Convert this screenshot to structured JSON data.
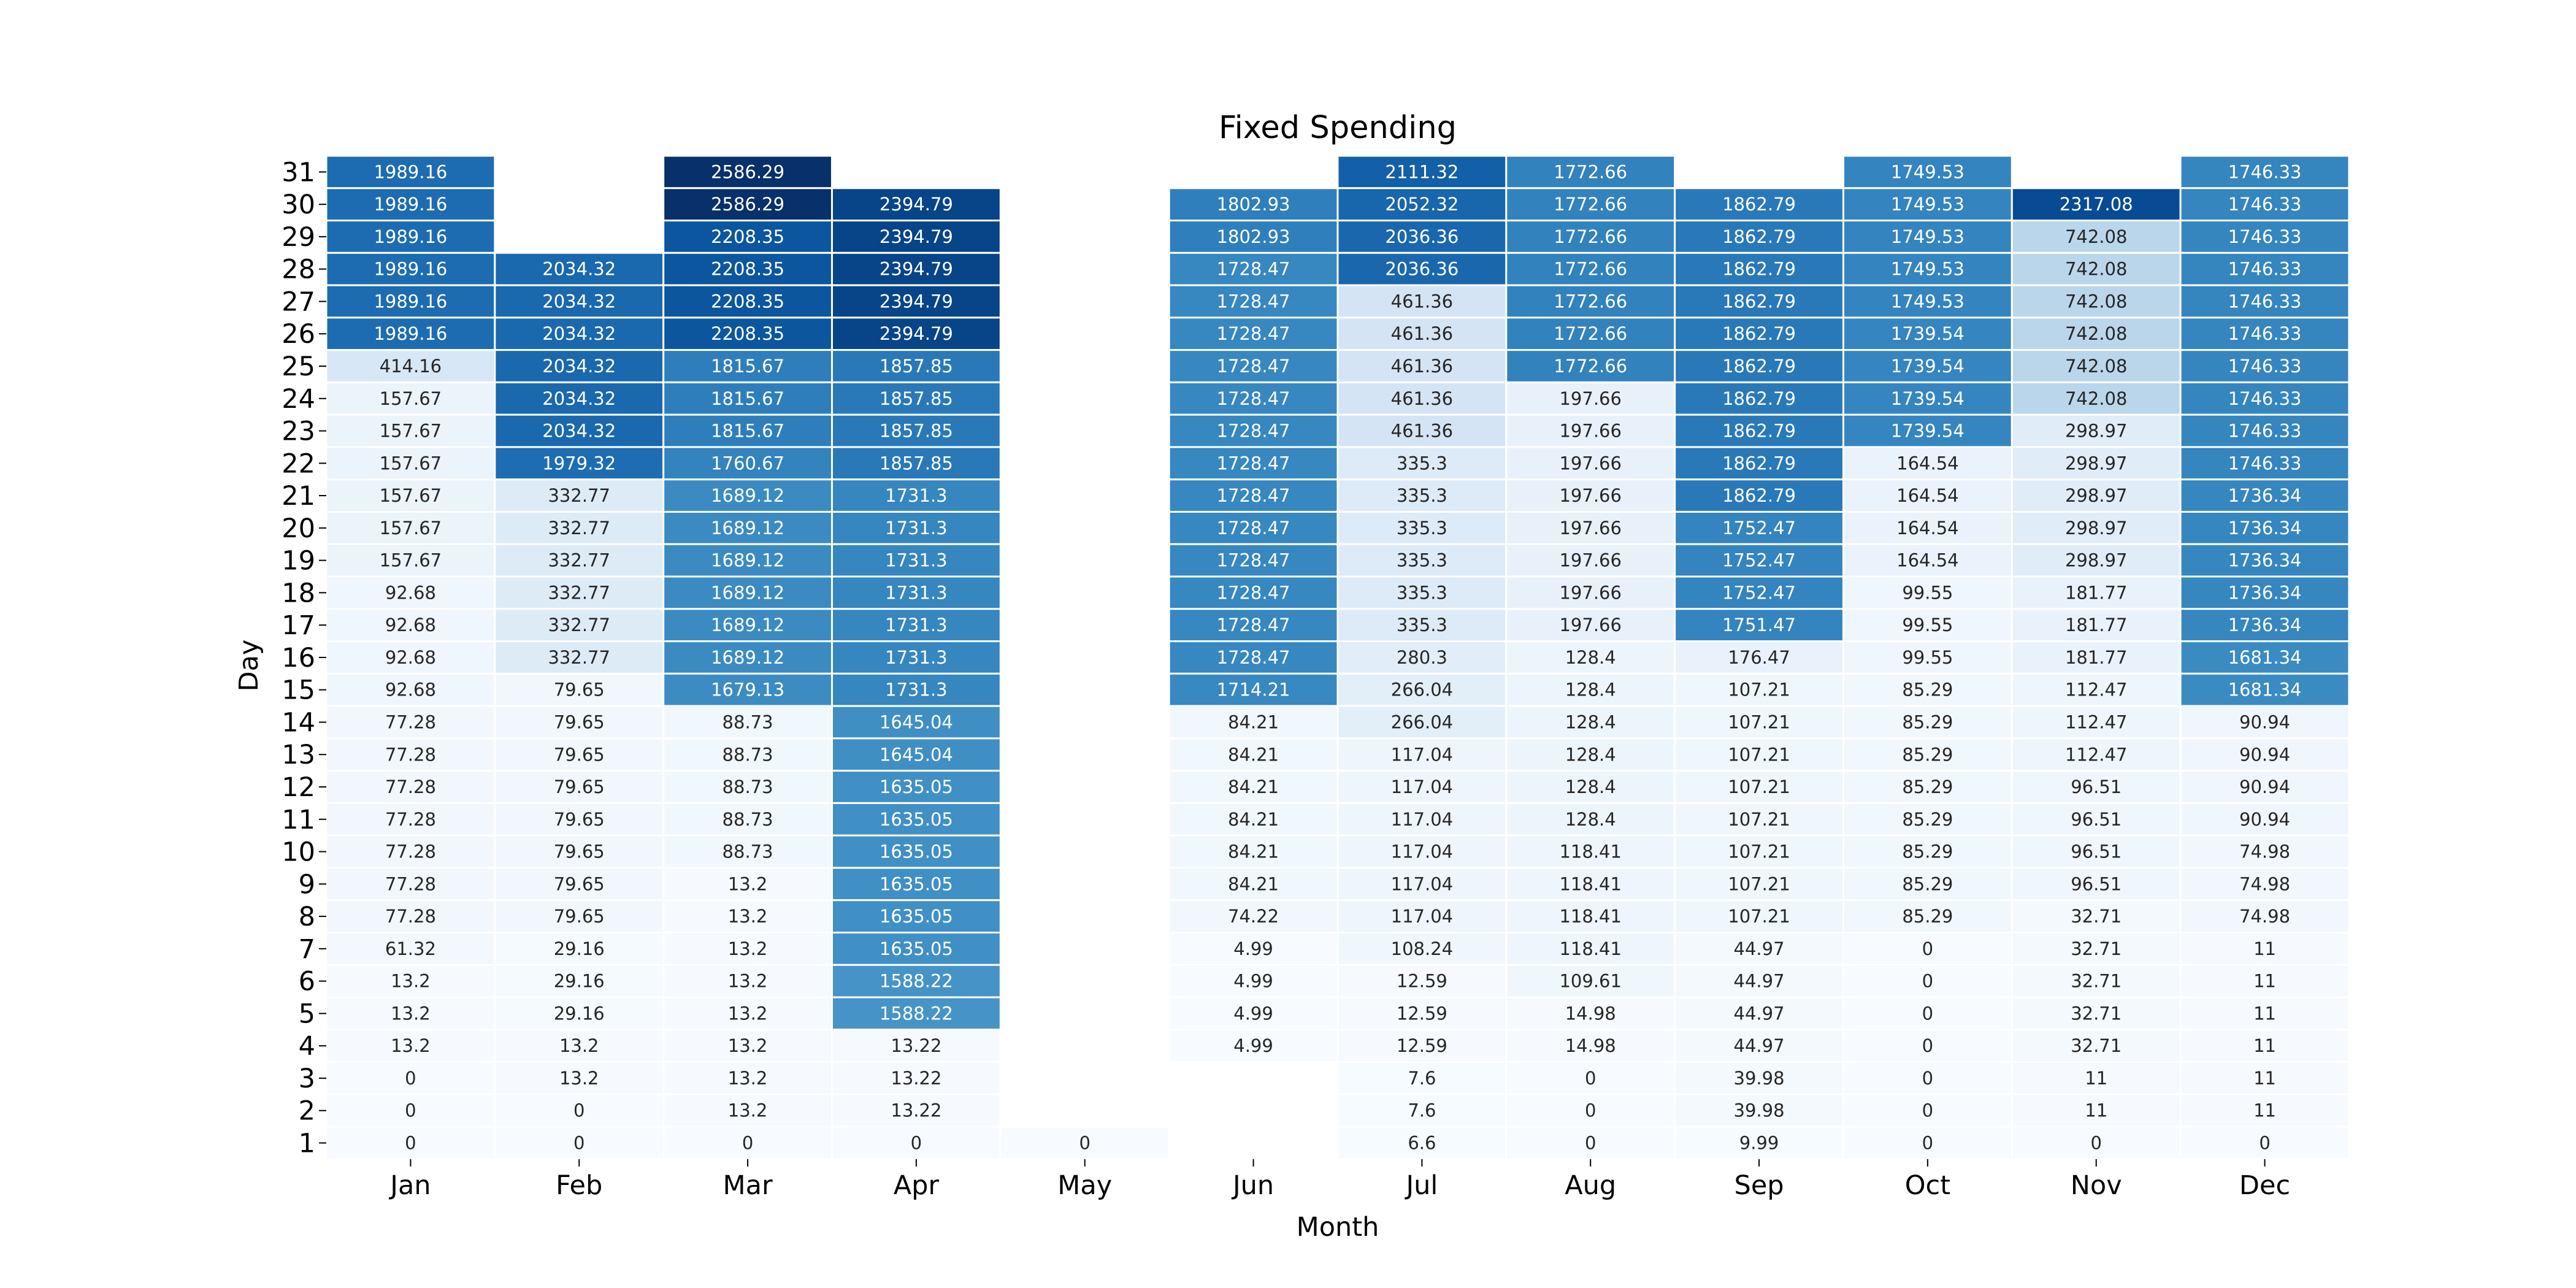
{
  "chart_data": {
    "type": "heatmap",
    "title": "Fixed Spending",
    "xlabel": "Month",
    "ylabel": "Day",
    "x_categories": [
      "Jan",
      "Feb",
      "Mar",
      "Apr",
      "May",
      "Jun",
      "Jul",
      "Aug",
      "Sep",
      "Oct",
      "Nov",
      "Dec"
    ],
    "y_categories": [
      "31",
      "30",
      "29",
      "28",
      "27",
      "26",
      "25",
      "24",
      "23",
      "22",
      "21",
      "20",
      "19",
      "18",
      "17",
      "16",
      "15",
      "14",
      "13",
      "12",
      "11",
      "10",
      "9",
      "8",
      "7",
      "6",
      "5",
      "4",
      "3",
      "2",
      "1"
    ],
    "colormap": "Blues",
    "value_range": [
      0,
      2586.29
    ],
    "grid": false,
    "columns": {
      "Jan": [
        "1989.16",
        "1989.16",
        "1989.16",
        "1989.16",
        "1989.16",
        "1989.16",
        "414.16",
        "157.67",
        "157.67",
        "157.67",
        "157.67",
        "157.67",
        "157.67",
        "92.68",
        "92.68",
        "92.68",
        "92.68",
        "77.28",
        "77.28",
        "77.28",
        "77.28",
        "77.28",
        "77.28",
        "77.28",
        "61.32",
        "13.2",
        "13.2",
        "13.2",
        "0",
        "0",
        "0"
      ],
      "Feb": [
        null,
        null,
        null,
        "2034.32",
        "2034.32",
        "2034.32",
        "2034.32",
        "2034.32",
        "2034.32",
        "1979.32",
        "332.77",
        "332.77",
        "332.77",
        "332.77",
        "332.77",
        "332.77",
        "79.65",
        "79.65",
        "79.65",
        "79.65",
        "79.65",
        "79.65",
        "79.65",
        "79.65",
        "29.16",
        "29.16",
        "29.16",
        "13.2",
        "13.2",
        "0",
        "0"
      ],
      "Mar": [
        "2586.29",
        "2586.29",
        "2208.35",
        "2208.35",
        "2208.35",
        "2208.35",
        "1815.67",
        "1815.67",
        "1815.67",
        "1760.67",
        "1689.12",
        "1689.12",
        "1689.12",
        "1689.12",
        "1689.12",
        "1689.12",
        "1679.13",
        "88.73",
        "88.73",
        "88.73",
        "88.73",
        "88.73",
        "13.2",
        "13.2",
        "13.2",
        "13.2",
        "13.2",
        "13.2",
        "13.2",
        "13.2",
        "0"
      ],
      "Apr": [
        null,
        "2394.79",
        "2394.79",
        "2394.79",
        "2394.79",
        "2394.79",
        "1857.85",
        "1857.85",
        "1857.85",
        "1857.85",
        "1731.3",
        "1731.3",
        "1731.3",
        "1731.3",
        "1731.3",
        "1731.3",
        "1731.3",
        "1645.04",
        "1645.04",
        "1635.05",
        "1635.05",
        "1635.05",
        "1635.05",
        "1635.05",
        "1635.05",
        "1588.22",
        "1588.22",
        "13.22",
        "13.22",
        "13.22",
        "0"
      ],
      "May": [
        null,
        null,
        null,
        null,
        null,
        null,
        null,
        null,
        null,
        null,
        null,
        null,
        null,
        null,
        null,
        null,
        null,
        null,
        null,
        null,
        null,
        null,
        null,
        null,
        null,
        null,
        null,
        null,
        null,
        null,
        "0"
      ],
      "Jun": [
        null,
        "1802.93",
        "1802.93",
        "1728.47",
        "1728.47",
        "1728.47",
        "1728.47",
        "1728.47",
        "1728.47",
        "1728.47",
        "1728.47",
        "1728.47",
        "1728.47",
        "1728.47",
        "1728.47",
        "1728.47",
        "1714.21",
        "84.21",
        "84.21",
        "84.21",
        "84.21",
        "84.21",
        "84.21",
        "74.22",
        "4.99",
        "4.99",
        "4.99",
        "4.99",
        null,
        null,
        null
      ],
      "Jul": [
        "2111.32",
        "2052.32",
        "2036.36",
        "2036.36",
        "461.36",
        "461.36",
        "461.36",
        "461.36",
        "461.36",
        "335.3",
        "335.3",
        "335.3",
        "335.3",
        "335.3",
        "335.3",
        "280.3",
        "266.04",
        "266.04",
        "117.04",
        "117.04",
        "117.04",
        "117.04",
        "117.04",
        "117.04",
        "108.24",
        "12.59",
        "12.59",
        "12.59",
        "7.6",
        "7.6",
        "6.6"
      ],
      "Aug": [
        "1772.66",
        "1772.66",
        "1772.66",
        "1772.66",
        "1772.66",
        "1772.66",
        "1772.66",
        "197.66",
        "197.66",
        "197.66",
        "197.66",
        "197.66",
        "197.66",
        "197.66",
        "197.66",
        "128.4",
        "128.4",
        "128.4",
        "128.4",
        "128.4",
        "128.4",
        "118.41",
        "118.41",
        "118.41",
        "118.41",
        "109.61",
        "14.98",
        "14.98",
        "0",
        "0",
        "0"
      ],
      "Sep": [
        null,
        "1862.79",
        "1862.79",
        "1862.79",
        "1862.79",
        "1862.79",
        "1862.79",
        "1862.79",
        "1862.79",
        "1862.79",
        "1862.79",
        "1752.47",
        "1752.47",
        "1752.47",
        "1751.47",
        "176.47",
        "107.21",
        "107.21",
        "107.21",
        "107.21",
        "107.21",
        "107.21",
        "107.21",
        "107.21",
        "44.97",
        "44.97",
        "44.97",
        "44.97",
        "39.98",
        "39.98",
        "9.99"
      ],
      "Oct": [
        "1749.53",
        "1749.53",
        "1749.53",
        "1749.53",
        "1749.53",
        "1739.54",
        "1739.54",
        "1739.54",
        "1739.54",
        "164.54",
        "164.54",
        "164.54",
        "164.54",
        "99.55",
        "99.55",
        "99.55",
        "85.29",
        "85.29",
        "85.29",
        "85.29",
        "85.29",
        "85.29",
        "85.29",
        "85.29",
        "0",
        "0",
        "0",
        "0",
        "0",
        "0",
        "0"
      ],
      "Nov": [
        null,
        "2317.08",
        "742.08",
        "742.08",
        "742.08",
        "742.08",
        "742.08",
        "742.08",
        "298.97",
        "298.97",
        "298.97",
        "298.97",
        "298.97",
        "181.77",
        "181.77",
        "181.77",
        "112.47",
        "112.47",
        "112.47",
        "96.51",
        "96.51",
        "96.51",
        "96.51",
        "32.71",
        "32.71",
        "32.71",
        "32.71",
        "32.71",
        "11",
        "11",
        "0"
      ],
      "Dec": [
        "1746.33",
        "1746.33",
        "1746.33",
        "1746.33",
        "1746.33",
        "1746.33",
        "1746.33",
        "1746.33",
        "1746.33",
        "1746.33",
        "1736.34",
        "1736.34",
        "1736.34",
        "1736.34",
        "1736.34",
        "1681.34",
        "1681.34",
        "90.94",
        "90.94",
        "90.94",
        "90.94",
        "74.98",
        "74.98",
        "74.98",
        "11",
        "11",
        "11",
        "11",
        "11",
        "11",
        "0"
      ]
    }
  }
}
